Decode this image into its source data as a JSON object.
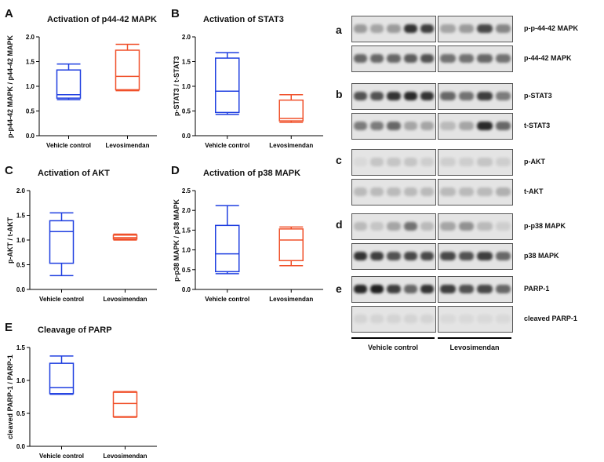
{
  "colors": {
    "vehicle": "#1f3fe0",
    "levo": "#f0502a",
    "axis": "#000000"
  },
  "charts": [
    {
      "id": "A",
      "letter": "A",
      "title": "Activation of p44-42 MAPK",
      "ylabel": "p-p44-42 MAPK / p44-42 MAPK"
    },
    {
      "id": "B",
      "letter": "B",
      "title": "Activation of STAT3",
      "ylabel": "p-STAT3 / t-STAT3"
    },
    {
      "id": "C",
      "letter": "C",
      "title": "Activation of AKT",
      "ylabel": "p-AKT / t-AKT"
    },
    {
      "id": "D",
      "letter": "D",
      "title": "Activation of p38 MAPK",
      "ylabel": "p-p38 MAPK / p38 MAPK"
    },
    {
      "id": "E",
      "letter": "E",
      "title": "Cleavage of PARP",
      "ylabel": "cleaved PARP-1 / PARP-1"
    }
  ],
  "chart_data": [
    {
      "type": "box",
      "title": "Activation of p44-42 MAPK",
      "ylabel": "p-p44-42 MAPK / p44-42 MAPK",
      "categories": [
        "Vehicle control",
        "Levosimendan"
      ],
      "ylim": [
        0,
        2.0
      ],
      "yticks": [
        "0.0",
        "0.5",
        "1.0",
        "1.5",
        "2.0"
      ],
      "boxes": [
        {
          "min": 0.73,
          "q1": 0.76,
          "median": 0.83,
          "q3": 1.33,
          "max": 1.45
        },
        {
          "min": 0.91,
          "q1": 0.93,
          "median": 1.2,
          "q3": 1.73,
          "max": 1.85
        }
      ]
    },
    {
      "type": "box",
      "title": "Activation of STAT3",
      "ylabel": "p-STAT3 / t-STAT3",
      "categories": [
        "Vehicle control",
        "Levosimendan"
      ],
      "ylim": [
        0,
        2.0
      ],
      "yticks": [
        "0.0",
        "0.5",
        "1.0",
        "1.5",
        "2.0"
      ],
      "boxes": [
        {
          "min": 0.43,
          "q1": 0.47,
          "median": 0.9,
          "q3": 1.57,
          "max": 1.68
        },
        {
          "min": 0.27,
          "q1": 0.3,
          "median": 0.35,
          "q3": 0.72,
          "max": 0.83
        }
      ]
    },
    {
      "type": "box",
      "title": "Activation of AKT",
      "ylabel": "p-AKT / t-AKT",
      "categories": [
        "Vehicle control",
        "Levosimendan"
      ],
      "ylim": [
        0,
        2.0
      ],
      "yticks": [
        "0.0",
        "0.5",
        "1.0",
        "1.5",
        "2.0"
      ],
      "boxes": [
        {
          "min": 0.28,
          "q1": 0.53,
          "median": 1.17,
          "q3": 1.39,
          "max": 1.55
        },
        {
          "min": 1.0,
          "q1": 1.02,
          "median": 1.05,
          "q3": 1.1,
          "max": 1.12
        }
      ]
    },
    {
      "type": "box",
      "title": "Activation of p38 MAPK",
      "ylabel": "p-p38 MAPK / p38 MAPK",
      "categories": [
        "Vehicle control",
        "Levosimendan"
      ],
      "ylim": [
        0,
        2.5
      ],
      "yticks": [
        "0.0",
        "0.5",
        "1.0",
        "1.5",
        "2.0",
        "2.5"
      ],
      "boxes": [
        {
          "min": 0.4,
          "q1": 0.45,
          "median": 0.9,
          "q3": 1.62,
          "max": 2.12
        },
        {
          "min": 0.6,
          "q1": 0.73,
          "median": 1.25,
          "q3": 1.53,
          "max": 1.58
        }
      ]
    },
    {
      "type": "box",
      "title": "Cleavage of PARP",
      "ylabel": "cleaved PARP-1 / PARP-1",
      "categories": [
        "Vehicle control",
        "Levosimendan"
      ],
      "ylim": [
        0,
        1.5
      ],
      "yticks": [
        "0.0",
        "0.5",
        "1.0",
        "1.5"
      ],
      "boxes": [
        {
          "min": 0.79,
          "q1": 0.8,
          "median": 0.89,
          "q3": 1.26,
          "max": 1.37
        },
        {
          "min": 0.44,
          "q1": 0.45,
          "median": 0.65,
          "q3": 0.82,
          "max": 0.83
        }
      ]
    }
  ],
  "blot": {
    "rows": [
      {
        "letter": "a",
        "labels": [
          "p-p-44-42 MAPK",
          "p-44-42 MAPK"
        ]
      },
      {
        "letter": "b",
        "labels": [
          "p-STAT3",
          "t-STAT3"
        ]
      },
      {
        "letter": "c",
        "labels": [
          "p-AKT",
          "t-AKT"
        ]
      },
      {
        "letter": "d",
        "labels": [
          "p-p38 MAPK",
          "p38 MAPK"
        ]
      },
      {
        "letter": "e",
        "labels": [
          "PARP-1",
          "cleaved PARP-1"
        ]
      }
    ],
    "groups": [
      "Vehicle control",
      "Levosimendan"
    ],
    "intensities": [
      [
        [
          0.35,
          0.3,
          0.35,
          0.85,
          0.8
        ],
        [
          0.3,
          0.35,
          0.75,
          0.45
        ]
      ],
      [
        [
          0.6,
          0.6,
          0.6,
          0.65,
          0.7
        ],
        [
          0.55,
          0.55,
          0.6,
          0.55
        ]
      ],
      [
        [
          0.7,
          0.7,
          0.85,
          0.9,
          0.85
        ],
        [
          0.6,
          0.55,
          0.8,
          0.5
        ]
      ],
      [
        [
          0.5,
          0.5,
          0.6,
          0.3,
          0.3
        ],
        [
          0.2,
          0.3,
          0.9,
          0.6
        ]
      ],
      [
        [
          0.05,
          0.15,
          0.15,
          0.15,
          0.1
        ],
        [
          0.1,
          0.1,
          0.15,
          0.1
        ]
      ],
      [
        [
          0.2,
          0.2,
          0.2,
          0.2,
          0.2
        ],
        [
          0.2,
          0.2,
          0.2,
          0.25
        ]
      ],
      [
        [
          0.2,
          0.15,
          0.3,
          0.55,
          0.2
        ],
        [
          0.3,
          0.4,
          0.2,
          0.1
        ]
      ],
      [
        [
          0.85,
          0.8,
          0.7,
          0.75,
          0.75
        ],
        [
          0.75,
          0.7,
          0.8,
          0.6
        ]
      ],
      [
        [
          0.9,
          0.95,
          0.8,
          0.6,
          0.85
        ],
        [
          0.8,
          0.7,
          0.75,
          0.6
        ]
      ],
      [
        [
          0.08,
          0.08,
          0.08,
          0.08,
          0.08
        ],
        [
          0.05,
          0.05,
          0.05,
          0.05
        ]
      ]
    ]
  }
}
